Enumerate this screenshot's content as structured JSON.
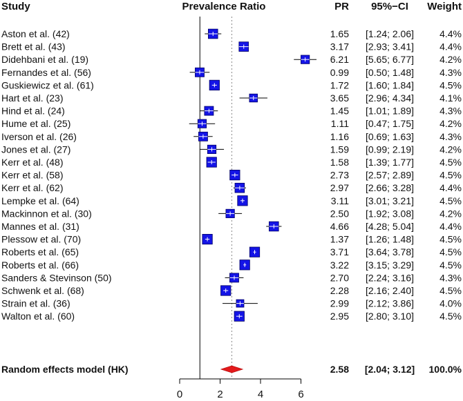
{
  "chart_data": {
    "type": "forest",
    "headers": {
      "study": "Study",
      "plot": "Prevalence Ratio",
      "pr": "PR",
      "ci": "95%−CI",
      "weight": "Weight"
    },
    "x_ticks": [
      0,
      2,
      4,
      6
    ],
    "xlim": [
      0,
      6
    ],
    "null_line": 1,
    "summary_line": 2.58,
    "studies": [
      {
        "label": "Aston et al. (42)",
        "pr": 1.65,
        "lo": 1.24,
        "hi": 2.06,
        "pr_text": "1.65",
        "ci_text": "[1.24; 2.06]",
        "weight_text": "4.4%",
        "weight": 4.4
      },
      {
        "label": "Brett et al. (43)",
        "pr": 3.17,
        "lo": 2.93,
        "hi": 3.41,
        "pr_text": "3.17",
        "ci_text": "[2.93; 3.41]",
        "weight_text": "4.4%",
        "weight": 4.4
      },
      {
        "label": "Didehbani et al. (19)",
        "pr": 6.21,
        "lo": 5.65,
        "hi": 6.77,
        "pr_text": "6.21",
        "ci_text": "[5.65; 6.77]",
        "weight_text": "4.2%",
        "weight": 4.2
      },
      {
        "label": "Fernandes et al. (56)",
        "pr": 0.99,
        "lo": 0.5,
        "hi": 1.48,
        "pr_text": "0.99",
        "ci_text": "[0.50; 1.48]",
        "weight_text": "4.3%",
        "weight": 4.3
      },
      {
        "label": "Guskiewicz et al. (61)",
        "pr": 1.72,
        "lo": 1.6,
        "hi": 1.84,
        "pr_text": "1.72",
        "ci_text": "[1.60; 1.84]",
        "weight_text": "4.5%",
        "weight": 4.5
      },
      {
        "label": "Hart et al. (23)",
        "pr": 3.65,
        "lo": 2.96,
        "hi": 4.34,
        "pr_text": "3.65",
        "ci_text": "[2.96; 4.34]",
        "weight_text": "4.1%",
        "weight": 4.1
      },
      {
        "label": "Hind et al. (24)",
        "pr": 1.45,
        "lo": 1.01,
        "hi": 1.89,
        "pr_text": "1.45",
        "ci_text": "[1.01; 1.89]",
        "weight_text": "4.3%",
        "weight": 4.3
      },
      {
        "label": "Hume et al. (25)",
        "pr": 1.11,
        "lo": 0.47,
        "hi": 1.75,
        "pr_text": "1.11",
        "ci_text": "[0.47; 1.75]",
        "weight_text": "4.2%",
        "weight": 4.2
      },
      {
        "label": "Iverson et al. (26)",
        "pr": 1.16,
        "lo": 0.69,
        "hi": 1.63,
        "pr_text": "1.16",
        "ci_text": "[0.69; 1.63]",
        "weight_text": "4.3%",
        "weight": 4.3
      },
      {
        "label": "Jones et al. (27)",
        "pr": 1.59,
        "lo": 0.99,
        "hi": 2.19,
        "pr_text": "1.59",
        "ci_text": "[0.99; 2.19]",
        "weight_text": "4.2%",
        "weight": 4.2
      },
      {
        "label": "Kerr et al. (48)",
        "pr": 1.58,
        "lo": 1.39,
        "hi": 1.77,
        "pr_text": "1.58",
        "ci_text": "[1.39; 1.77]",
        "weight_text": "4.5%",
        "weight": 4.5
      },
      {
        "label": "Kerr et al. (58)",
        "pr": 2.73,
        "lo": 2.57,
        "hi": 2.89,
        "pr_text": "2.73",
        "ci_text": "[2.57; 2.89]",
        "weight_text": "4.5%",
        "weight": 4.5
      },
      {
        "label": "Kerr et al. (62)",
        "pr": 2.97,
        "lo": 2.66,
        "hi": 3.28,
        "pr_text": "2.97",
        "ci_text": "[2.66; 3.28]",
        "weight_text": "4.4%",
        "weight": 4.4
      },
      {
        "label": "Lempke et al. (64)",
        "pr": 3.11,
        "lo": 3.01,
        "hi": 3.21,
        "pr_text": "3.11",
        "ci_text": "[3.01; 3.21]",
        "weight_text": "4.5%",
        "weight": 4.5
      },
      {
        "label": "Mackinnon et al. (30)",
        "pr": 2.5,
        "lo": 1.92,
        "hi": 3.08,
        "pr_text": "2.50",
        "ci_text": "[1.92; 3.08]",
        "weight_text": "4.2%",
        "weight": 4.2
      },
      {
        "label": "Mannes et al. (31)",
        "pr": 4.66,
        "lo": 4.28,
        "hi": 5.04,
        "pr_text": "4.66",
        "ci_text": "[4.28; 5.04]",
        "weight_text": "4.4%",
        "weight": 4.4
      },
      {
        "label": "Plessow et al. (70)",
        "pr": 1.37,
        "lo": 1.26,
        "hi": 1.48,
        "pr_text": "1.37",
        "ci_text": "[1.26; 1.48]",
        "weight_text": "4.5%",
        "weight": 4.5
      },
      {
        "label": "Roberts et al. (65)",
        "pr": 3.71,
        "lo": 3.64,
        "hi": 3.78,
        "pr_text": "3.71",
        "ci_text": "[3.64; 3.78]",
        "weight_text": "4.5%",
        "weight": 4.5
      },
      {
        "label": "Roberts et al. (66)",
        "pr": 3.22,
        "lo": 3.15,
        "hi": 3.29,
        "pr_text": "3.22",
        "ci_text": "[3.15; 3.29]",
        "weight_text": "4.5%",
        "weight": 4.5
      },
      {
        "label": "Sanders & Stevinson (50)",
        "pr": 2.7,
        "lo": 2.24,
        "hi": 3.16,
        "pr_text": "2.70",
        "ci_text": "[2.24; 3.16]",
        "weight_text": "4.3%",
        "weight": 4.3
      },
      {
        "label": "Schwenk et al. (68)",
        "pr": 2.28,
        "lo": 2.16,
        "hi": 2.4,
        "pr_text": "2.28",
        "ci_text": "[2.16; 2.40]",
        "weight_text": "4.5%",
        "weight": 4.5
      },
      {
        "label": "Strain et al. (36)",
        "pr": 2.99,
        "lo": 2.12,
        "hi": 3.86,
        "pr_text": "2.99",
        "ci_text": "[2.12; 3.86]",
        "weight_text": "4.0%",
        "weight": 4.0
      },
      {
        "label": "Walton et al. (60)",
        "pr": 2.95,
        "lo": 2.8,
        "hi": 3.1,
        "pr_text": "2.95",
        "ci_text": "[2.80; 3.10]",
        "weight_text": "4.5%",
        "weight": 4.5
      }
    ],
    "summary": {
      "label": "Random effects model (HK)",
      "pr": 2.58,
      "lo": 2.04,
      "hi": 3.12,
      "pr_text": "2.58",
      "ci_text": "[2.04; 3.12]",
      "weight_text": "100.0%"
    },
    "colors": {
      "box": "#1414e6",
      "box_edge": "#000066",
      "diamond": "#e31a1c",
      "line": "#000000",
      "ref_line": "#888888",
      "text": "#111111"
    }
  }
}
